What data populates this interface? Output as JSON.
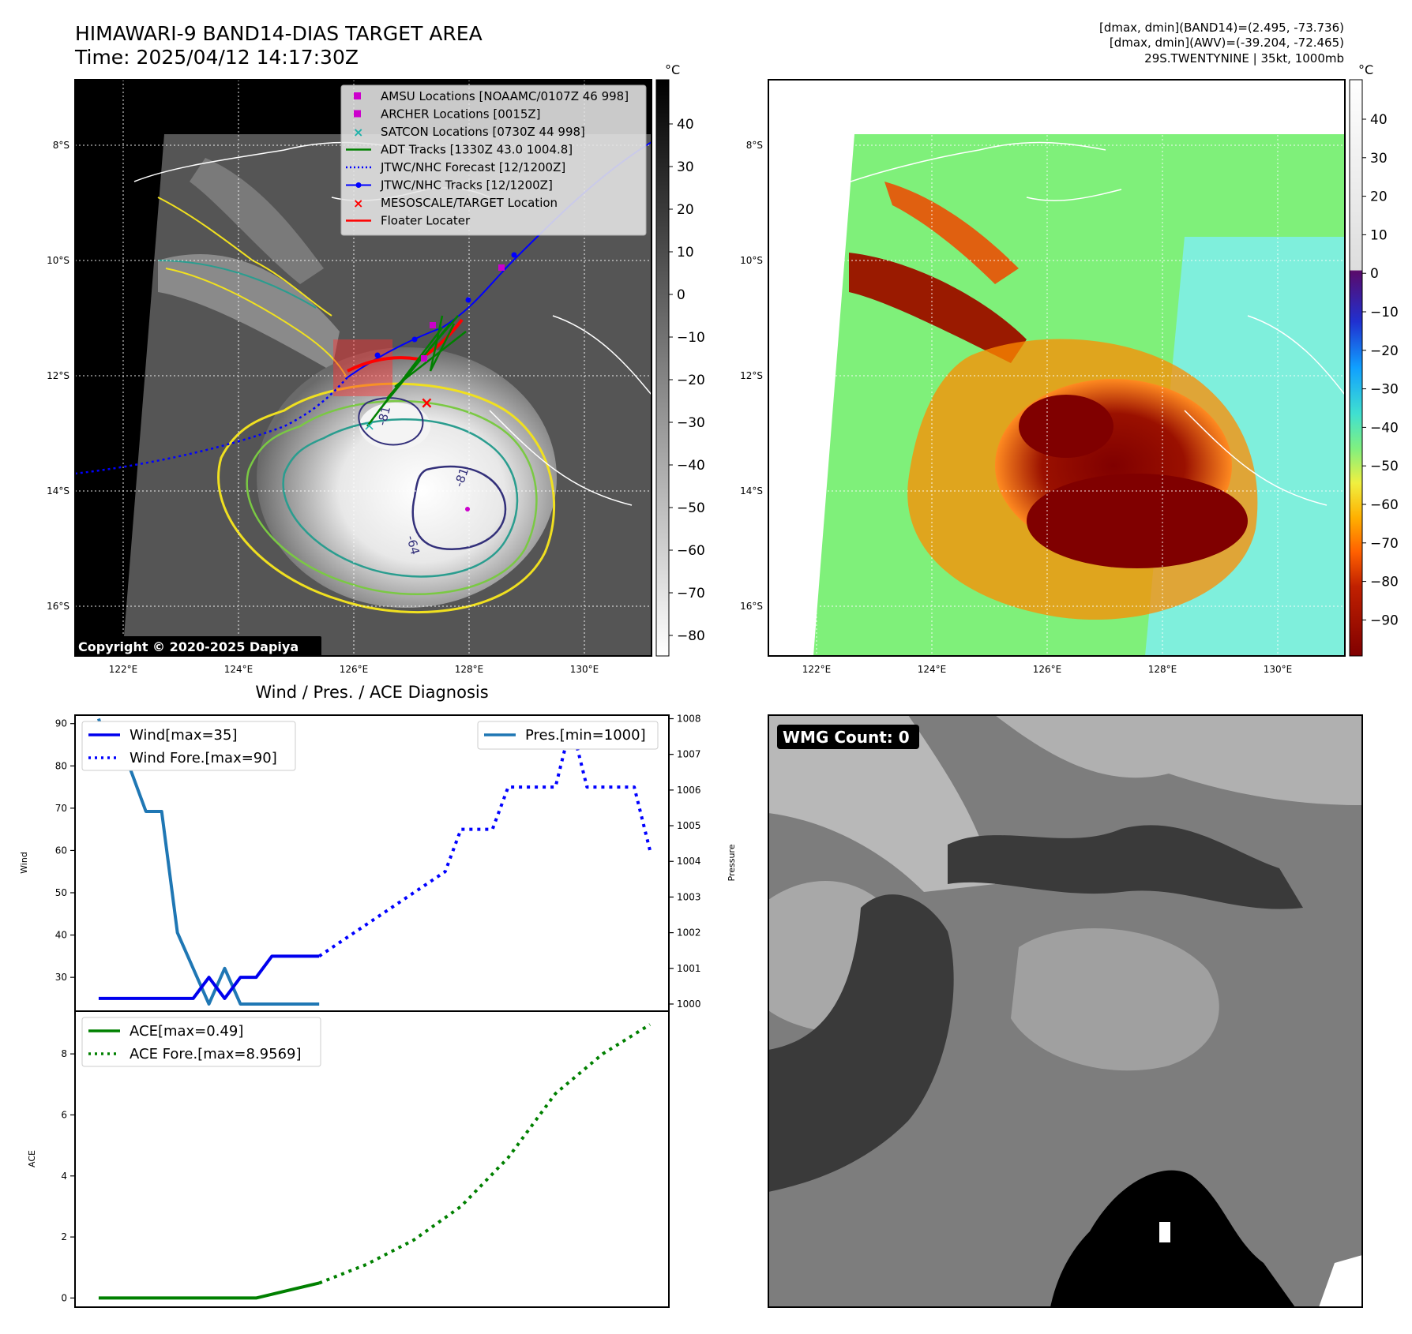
{
  "header": {
    "title": "HIMAWARI-9 BAND14-DIAS TARGET AREA",
    "time": "Time: 2025/04/12 14:17:30Z",
    "dmax_band14": "[dmax, dmin](BAND14)=(2.495, -73.736)",
    "dmax_awv": "[dmax, dmin](AWV)=(-39.204, -72.465)",
    "storm": "29S.TWENTYNINE | 35kt, 1000mb"
  },
  "map_axes": {
    "lat_labels": [
      "8°S",
      "10°S",
      "12°S",
      "14°S",
      "16°S"
    ],
    "lon_labels": [
      "122°E",
      "124°E",
      "126°E",
      "128°E",
      "130°E"
    ]
  },
  "colorbar_left": {
    "unit": "°C",
    "ticks": [
      "40",
      "30",
      "20",
      "10",
      "0",
      "−10",
      "−20",
      "−30",
      "−40",
      "−50",
      "−60",
      "−70",
      "−80"
    ]
  },
  "colorbar_right": {
    "unit": "°C",
    "ticks": [
      "40",
      "30",
      "20",
      "10",
      "0",
      "−10",
      "−20",
      "−30",
      "−40",
      "−50",
      "−60",
      "−70",
      "−80",
      "−90"
    ]
  },
  "legend_map": {
    "items": [
      {
        "label": "AMSU Locations [NOAAMC/0107Z 46 998]",
        "color": "#cc00cc",
        "style": "square"
      },
      {
        "label": "ARCHER Locations [0015Z]",
        "color": "#cc00cc",
        "style": "square"
      },
      {
        "label": "SATCON Locations [0730Z 44 998]",
        "color": "#20b2aa",
        "style": "x"
      },
      {
        "label": "ADT Tracks [1330Z 43.0 1004.8]",
        "color": "#008000",
        "style": "line"
      },
      {
        "label": "JTWC/NHC Forecast [12/1200Z]",
        "color": "#0000ff",
        "style": "dotted"
      },
      {
        "label": "JTWC/NHC Tracks [12/1200Z]",
        "color": "#0000ff",
        "style": "line-dot"
      },
      {
        "label": "MESOSCALE/TARGET Location",
        "color": "#ff0000",
        "style": "x"
      },
      {
        "label": "Floater Locater",
        "color": "#ff0000",
        "style": "line"
      }
    ]
  },
  "contour_labels": [
    "-81",
    "-81",
    "-64"
  ],
  "copyright": "Copyright © 2020-2025 Dapiya",
  "diagnosis": {
    "title": "Wind / Pres. / ACE Diagnosis",
    "legend_wind": "Wind[max=35]",
    "legend_wind_fore": "Wind Fore.[max=90]",
    "legend_pres": "Pres.[min=1000]",
    "legend_ace": "ACE[max=0.49]",
    "legend_ace_fore": "ACE Fore.[max=8.9569]",
    "ylabel_wind": "Wind",
    "ylabel_pres": "Pressure",
    "ylabel_ace": "ACE"
  },
  "wmg": {
    "label": "WMG Count: 0"
  },
  "colors": {
    "wind": "#0000ee",
    "pressure": "#1f77b4",
    "ace": "#008000",
    "forecast": "#0000ff"
  },
  "chart_data": [
    {
      "type": "line",
      "title": "Wind / Pres. / ACE Diagnosis",
      "ylabel": "Wind",
      "ylim": [
        22,
        92
      ],
      "yticks": [
        30,
        40,
        50,
        60,
        70,
        80,
        90
      ],
      "series": [
        {
          "name": "Wind[max=35]",
          "style": "solid",
          "x": [
            0,
            1,
            2,
            3,
            4,
            5,
            6,
            7,
            8,
            9,
            10,
            11,
            12,
            13,
            14
          ],
          "values": [
            25,
            25,
            25,
            25,
            25,
            25,
            25,
            30,
            25,
            30,
            30,
            35,
            35,
            35,
            35
          ]
        },
        {
          "name": "Wind Fore.[max=90]",
          "style": "dotted",
          "x": [
            14,
            16,
            18,
            20,
            22,
            23,
            24,
            25,
            26,
            27,
            28,
            29,
            30,
            31,
            32,
            33,
            34,
            35
          ],
          "values": [
            35,
            40,
            45,
            50,
            55,
            65,
            65,
            65,
            75,
            75,
            75,
            75,
            90,
            75,
            75,
            75,
            75,
            60
          ]
        }
      ]
    },
    {
      "type": "line",
      "ylabel": "Pressure",
      "ylim": [
        999.8,
        1008.1
      ],
      "yticks": [
        1000,
        1001,
        1002,
        1003,
        1004,
        1005,
        1006,
        1007,
        1008
      ],
      "series": [
        {
          "name": "Pres.[min=1000]",
          "style": "solid",
          "x": [
            0,
            1,
            2,
            3,
            4,
            5,
            6,
            7,
            8,
            9,
            10,
            11,
            12,
            13,
            14
          ],
          "values": [
            1008,
            1006.6,
            1006.6,
            1005.4,
            1005.4,
            1002,
            1001,
            1000,
            1001,
            1000,
            1000,
            1000,
            1000,
            1000,
            1000
          ]
        }
      ]
    },
    {
      "type": "line",
      "ylabel": "ACE",
      "ylim": [
        -0.3,
        9.4
      ],
      "yticks": [
        0,
        2,
        4,
        6,
        8
      ],
      "series": [
        {
          "name": "ACE[max=0.49]",
          "style": "solid",
          "x": [
            0,
            10,
            14
          ],
          "values": [
            0,
            0,
            0.49
          ]
        },
        {
          "name": "ACE Fore.[max=8.9569]",
          "style": "dotted",
          "x": [
            14,
            17,
            20,
            23,
            26,
            29,
            32,
            35
          ],
          "values": [
            0.49,
            1.1,
            1.9,
            3.0,
            4.6,
            6.7,
            8.0,
            8.96
          ]
        }
      ]
    }
  ]
}
